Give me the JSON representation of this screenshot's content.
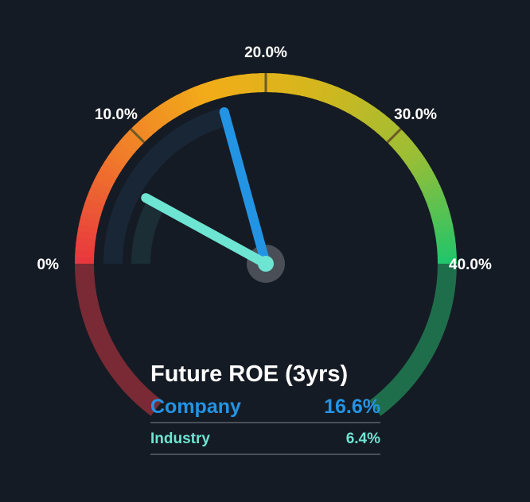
{
  "chart_data": {
    "type": "gauge",
    "title": "Future ROE (3yrs)",
    "scale": {
      "min": 0,
      "max": 40,
      "unit": "%"
    },
    "ticks": [
      {
        "value": 0,
        "label": "0%"
      },
      {
        "value": 10,
        "label": "10.0%"
      },
      {
        "value": 20,
        "label": "20.0%"
      },
      {
        "value": 30,
        "label": "30.0%"
      },
      {
        "value": 40,
        "label": "40.0%"
      }
    ],
    "series": [
      {
        "name": "Company",
        "value": 16.6,
        "label": "16.6%",
        "color": "#2394e4"
      },
      {
        "name": "Industry",
        "value": 6.4,
        "label": "6.4%",
        "color": "#6ee4d2"
      }
    ],
    "gradient_colors": [
      "#e8383e",
      "#f07c2a",
      "#f2ad18",
      "#d2b71e",
      "#9bbe35",
      "#22c56a"
    ],
    "background_color": "#151b24"
  }
}
